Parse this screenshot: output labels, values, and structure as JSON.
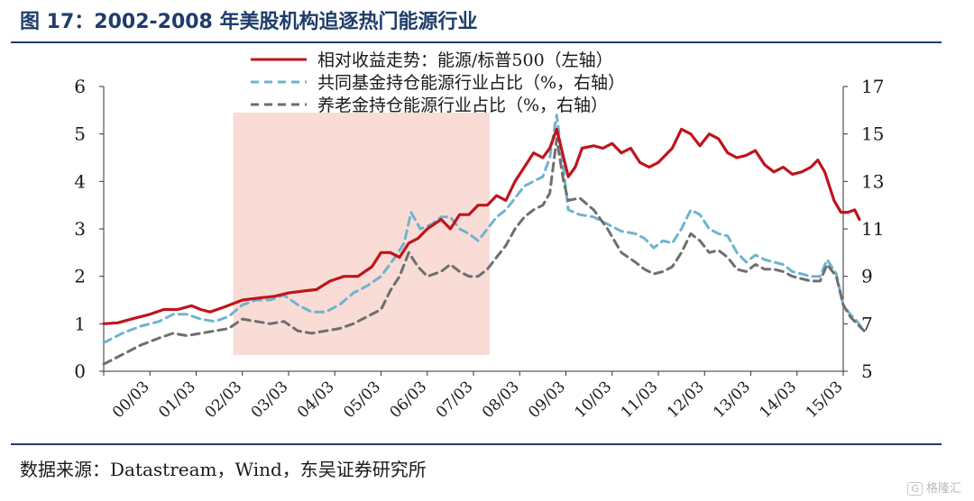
{
  "page": {
    "title": "图 17：2002-2008 年美股机构追逐热门能源行业",
    "source": "数据来源：Datastream，Wind，东吴证券研究所",
    "watermark": "格隆汇",
    "watermark_icon": "logo-box-icon"
  },
  "chart_data": {
    "type": "line",
    "title": "",
    "x_labels": [
      "00/03",
      "01/03",
      "02/03",
      "03/03",
      "04/03",
      "05/03",
      "06/03",
      "07/03",
      "08/03",
      "09/03",
      "10/03",
      "11/03",
      "12/03",
      "13/03",
      "14/03",
      "15/03"
    ],
    "y_left": {
      "min": 0,
      "max": 6,
      "ticks": [
        "0",
        "1",
        "2",
        "3",
        "4",
        "5",
        "6"
      ]
    },
    "y_right": {
      "min": 5,
      "max": 17,
      "ticks": [
        "5",
        "7",
        "9",
        "11",
        "13",
        "15",
        "17"
      ]
    },
    "highlight_period": {
      "from": 2.8,
      "to": 8.35,
      "color": "#f9dcd6"
    },
    "grid": false,
    "legend_position": "top-center",
    "series": [
      {
        "name": "相对收益走势：能源/标普500（左轴）",
        "axis": "left",
        "color": "#c0141c",
        "dash": "solid",
        "points": [
          [
            0,
            1.0
          ],
          [
            0.3,
            1.02
          ],
          [
            0.6,
            1.1
          ],
          [
            1,
            1.2
          ],
          [
            1.3,
            1.3
          ],
          [
            1.6,
            1.3
          ],
          [
            1.9,
            1.38
          ],
          [
            2.1,
            1.3
          ],
          [
            2.3,
            1.25
          ],
          [
            2.6,
            1.35
          ],
          [
            3,
            1.5
          ],
          [
            3.4,
            1.55
          ],
          [
            3.7,
            1.58
          ],
          [
            4,
            1.65
          ],
          [
            4.4,
            1.7
          ],
          [
            4.6,
            1.72
          ],
          [
            4.9,
            1.9
          ],
          [
            5.2,
            2.0
          ],
          [
            5.5,
            2.0
          ],
          [
            5.8,
            2.2
          ],
          [
            6,
            2.5
          ],
          [
            6.2,
            2.5
          ],
          [
            6.4,
            2.4
          ],
          [
            6.6,
            2.7
          ],
          [
            6.8,
            2.8
          ],
          [
            7,
            3.0
          ],
          [
            7.3,
            3.2
          ],
          [
            7.5,
            3.0
          ],
          [
            7.7,
            3.3
          ],
          [
            7.9,
            3.3
          ],
          [
            8.1,
            3.5
          ],
          [
            8.3,
            3.5
          ],
          [
            8.5,
            3.7
          ],
          [
            8.7,
            3.6
          ],
          [
            8.9,
            4.0
          ],
          [
            9.1,
            4.3
          ],
          [
            9.3,
            4.6
          ],
          [
            9.5,
            4.5
          ],
          [
            9.65,
            4.7
          ],
          [
            9.8,
            5.1
          ],
          [
            9.9,
            4.7
          ],
          [
            10.05,
            4.1
          ],
          [
            10.2,
            4.3
          ],
          [
            10.35,
            4.7
          ],
          [
            10.6,
            4.75
          ],
          [
            10.8,
            4.7
          ],
          [
            11,
            4.8
          ],
          [
            11.2,
            4.6
          ],
          [
            11.4,
            4.7
          ],
          [
            11.6,
            4.4
          ],
          [
            11.8,
            4.3
          ],
          [
            12,
            4.4
          ],
          [
            12.3,
            4.7
          ],
          [
            12.5,
            5.1
          ],
          [
            12.7,
            5.0
          ],
          [
            12.9,
            4.75
          ],
          [
            13.1,
            5.0
          ],
          [
            13.3,
            4.9
          ],
          [
            13.5,
            4.6
          ],
          [
            13.7,
            4.5
          ],
          [
            13.9,
            4.55
          ],
          [
            14.1,
            4.65
          ],
          [
            14.3,
            4.35
          ],
          [
            14.5,
            4.2
          ],
          [
            14.7,
            4.3
          ],
          [
            14.9,
            4.15
          ],
          [
            15.1,
            4.2
          ],
          [
            15.3,
            4.3
          ],
          [
            15.45,
            4.45
          ],
          [
            15.6,
            4.2
          ],
          [
            15.8,
            3.6
          ],
          [
            15.95,
            3.35
          ],
          [
            16.1,
            3.35
          ],
          [
            16.25,
            3.4
          ],
          [
            16.35,
            3.2
          ]
        ]
      },
      {
        "name": "共同基金持仓能源行业占比（%，右轴）",
        "axis": "right",
        "color": "#6fb3cf",
        "dash": "dashed",
        "points": [
          [
            0,
            6.2
          ],
          [
            0.4,
            6.6
          ],
          [
            0.8,
            6.9
          ],
          [
            1.2,
            7.1
          ],
          [
            1.5,
            7.4
          ],
          [
            1.8,
            7.4
          ],
          [
            2.1,
            7.2
          ],
          [
            2.4,
            7.1
          ],
          [
            2.7,
            7.3
          ],
          [
            3,
            7.8
          ],
          [
            3.3,
            8.0
          ],
          [
            3.6,
            8.0
          ],
          [
            3.9,
            8.2
          ],
          [
            4.2,
            7.8
          ],
          [
            4.5,
            7.5
          ],
          [
            4.8,
            7.5
          ],
          [
            5.1,
            7.8
          ],
          [
            5.4,
            8.3
          ],
          [
            5.7,
            8.6
          ],
          [
            6,
            9.0
          ],
          [
            6.3,
            9.8
          ],
          [
            6.5,
            10.4
          ],
          [
            6.65,
            11.7
          ],
          [
            6.85,
            11.0
          ],
          [
            7.1,
            11.2
          ],
          [
            7.3,
            11.5
          ],
          [
            7.5,
            11.5
          ],
          [
            7.7,
            11.0
          ],
          [
            7.9,
            10.8
          ],
          [
            8.1,
            10.5
          ],
          [
            8.3,
            11.0
          ],
          [
            8.5,
            11.5
          ],
          [
            8.7,
            11.8
          ],
          [
            8.9,
            12.3
          ],
          [
            9.1,
            12.8
          ],
          [
            9.3,
            13.0
          ],
          [
            9.5,
            13.2
          ],
          [
            9.65,
            14.0
          ],
          [
            9.8,
            15.8
          ],
          [
            9.95,
            13.5
          ],
          [
            10.05,
            11.8
          ],
          [
            10.3,
            11.6
          ],
          [
            10.6,
            11.5
          ],
          [
            10.9,
            11.2
          ],
          [
            11.2,
            10.9
          ],
          [
            11.5,
            10.8
          ],
          [
            11.7,
            10.6
          ],
          [
            11.9,
            10.2
          ],
          [
            12.1,
            10.5
          ],
          [
            12.3,
            10.4
          ],
          [
            12.5,
            11.0
          ],
          [
            12.7,
            11.8
          ],
          [
            12.9,
            11.6
          ],
          [
            13.1,
            11.0
          ],
          [
            13.3,
            10.8
          ],
          [
            13.5,
            10.7
          ],
          [
            13.7,
            10.0
          ],
          [
            13.9,
            9.6
          ],
          [
            14.1,
            9.9
          ],
          [
            14.3,
            9.7
          ],
          [
            14.5,
            9.6
          ],
          [
            14.7,
            9.5
          ],
          [
            14.9,
            9.2
          ],
          [
            15.1,
            9.1
          ],
          [
            15.3,
            9.0
          ],
          [
            15.5,
            9.0
          ],
          [
            15.65,
            9.7
          ],
          [
            15.85,
            9.1
          ],
          [
            16.0,
            7.8
          ],
          [
            16.15,
            7.4
          ],
          [
            16.3,
            7.1
          ],
          [
            16.45,
            6.7
          ]
        ]
      },
      {
        "name": "养老金持仓能源行业占比（%，右轴）",
        "axis": "right",
        "color": "#6e6e6e",
        "dash": "dashed",
        "points": [
          [
            0,
            5.3
          ],
          [
            0.4,
            5.7
          ],
          [
            0.8,
            6.1
          ],
          [
            1.2,
            6.4
          ],
          [
            1.5,
            6.6
          ],
          [
            1.8,
            6.5
          ],
          [
            2.1,
            6.6
          ],
          [
            2.4,
            6.7
          ],
          [
            2.7,
            6.8
          ],
          [
            3,
            7.2
          ],
          [
            3.3,
            7.1
          ],
          [
            3.6,
            7.0
          ],
          [
            3.9,
            7.1
          ],
          [
            4.2,
            6.7
          ],
          [
            4.5,
            6.6
          ],
          [
            4.8,
            6.7
          ],
          [
            5.1,
            6.8
          ],
          [
            5.4,
            7.0
          ],
          [
            5.7,
            7.3
          ],
          [
            6,
            7.6
          ],
          [
            6.2,
            8.4
          ],
          [
            6.4,
            9.0
          ],
          [
            6.6,
            10.0
          ],
          [
            6.8,
            9.4
          ],
          [
            7,
            9.0
          ],
          [
            7.3,
            9.2
          ],
          [
            7.5,
            9.5
          ],
          [
            7.7,
            9.2
          ],
          [
            7.9,
            9.0
          ],
          [
            8.1,
            9.0
          ],
          [
            8.3,
            9.3
          ],
          [
            8.5,
            9.8
          ],
          [
            8.7,
            10.3
          ],
          [
            8.9,
            11.0
          ],
          [
            9.1,
            11.5
          ],
          [
            9.3,
            11.8
          ],
          [
            9.5,
            12.0
          ],
          [
            9.65,
            12.5
          ],
          [
            9.8,
            14.8
          ],
          [
            9.95,
            13.0
          ],
          [
            10.05,
            12.2
          ],
          [
            10.3,
            12.3
          ],
          [
            10.6,
            11.8
          ],
          [
            10.9,
            11.0
          ],
          [
            11.2,
            10.0
          ],
          [
            11.5,
            9.6
          ],
          [
            11.7,
            9.3
          ],
          [
            11.9,
            9.1
          ],
          [
            12.1,
            9.2
          ],
          [
            12.3,
            9.4
          ],
          [
            12.5,
            10.0
          ],
          [
            12.7,
            10.8
          ],
          [
            12.9,
            10.5
          ],
          [
            13.1,
            10.0
          ],
          [
            13.3,
            10.1
          ],
          [
            13.5,
            9.8
          ],
          [
            13.7,
            9.3
          ],
          [
            13.9,
            9.2
          ],
          [
            14.1,
            9.5
          ],
          [
            14.3,
            9.3
          ],
          [
            14.5,
            9.3
          ],
          [
            14.7,
            9.2
          ],
          [
            14.9,
            9.0
          ],
          [
            15.1,
            8.9
          ],
          [
            15.3,
            8.8
          ],
          [
            15.5,
            8.8
          ],
          [
            15.65,
            9.5
          ],
          [
            15.85,
            9.0
          ],
          [
            16.0,
            7.8
          ],
          [
            16.15,
            7.3
          ],
          [
            16.3,
            7.0
          ],
          [
            16.45,
            6.7
          ]
        ]
      }
    ]
  }
}
